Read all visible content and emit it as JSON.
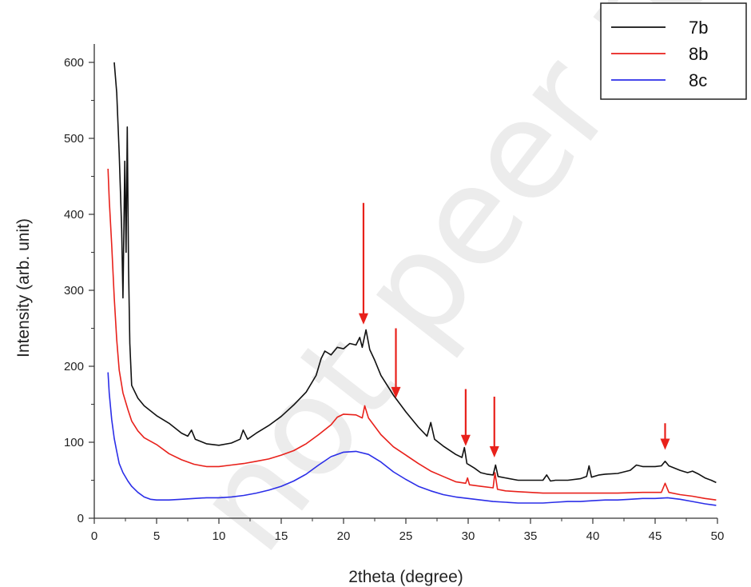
{
  "watermark": "not peer re",
  "chart_data": {
    "type": "line",
    "xlabel": "2theta (degree)",
    "ylabel": "Intensity (arb. unit)",
    "xlim": [
      0,
      50
    ],
    "ylim": [
      0,
      620
    ],
    "xticks": [
      0,
      5,
      10,
      15,
      20,
      25,
      30,
      35,
      40,
      45,
      50
    ],
    "yticks": [
      0,
      100,
      200,
      300,
      400,
      500,
      600
    ],
    "legend_position": "top-right",
    "grid": false,
    "series": [
      {
        "name": "7b",
        "color": "#111111",
        "points": [
          [
            1.6,
            600
          ],
          [
            1.8,
            560
          ],
          [
            2.0,
            480
          ],
          [
            2.2,
            380
          ],
          [
            2.3,
            290
          ],
          [
            2.45,
            470
          ],
          [
            2.55,
            350
          ],
          [
            2.65,
            515
          ],
          [
            2.75,
            330
          ],
          [
            2.85,
            230
          ],
          [
            3.0,
            175
          ],
          [
            3.5,
            158
          ],
          [
            4.0,
            148
          ],
          [
            5.0,
            135
          ],
          [
            6.0,
            125
          ],
          [
            7.0,
            112
          ],
          [
            7.5,
            108
          ],
          [
            7.8,
            116
          ],
          [
            8.1,
            104
          ],
          [
            9.0,
            98
          ],
          [
            10.0,
            96
          ],
          [
            11.0,
            99
          ],
          [
            11.7,
            104
          ],
          [
            11.95,
            116
          ],
          [
            12.3,
            104
          ],
          [
            13.0,
            112
          ],
          [
            14.0,
            122
          ],
          [
            15.0,
            134
          ],
          [
            16.0,
            149
          ],
          [
            17.0,
            166
          ],
          [
            17.8,
            188
          ],
          [
            18.2,
            210
          ],
          [
            18.5,
            220
          ],
          [
            19.0,
            215
          ],
          [
            19.5,
            225
          ],
          [
            20.0,
            223
          ],
          [
            20.5,
            230
          ],
          [
            21.0,
            228
          ],
          [
            21.3,
            238
          ],
          [
            21.5,
            225
          ],
          [
            21.8,
            248
          ],
          [
            22.1,
            222
          ],
          [
            22.5,
            208
          ],
          [
            23.0,
            188
          ],
          [
            24.0,
            162
          ],
          [
            25.0,
            140
          ],
          [
            26.0,
            120
          ],
          [
            26.7,
            108
          ],
          [
            27.0,
            126
          ],
          [
            27.3,
            104
          ],
          [
            28.0,
            95
          ],
          [
            29.0,
            84
          ],
          [
            29.5,
            80
          ],
          [
            29.7,
            93
          ],
          [
            29.9,
            72
          ],
          [
            30.5,
            66
          ],
          [
            31.0,
            60
          ],
          [
            31.5,
            58
          ],
          [
            32.0,
            57
          ],
          [
            32.2,
            70
          ],
          [
            32.4,
            55
          ],
          [
            33.0,
            53
          ],
          [
            34.0,
            50
          ],
          [
            35.0,
            50
          ],
          [
            36.0,
            50
          ],
          [
            36.3,
            57
          ],
          [
            36.6,
            49
          ],
          [
            37.0,
            50
          ],
          [
            38.0,
            50
          ],
          [
            39.0,
            52
          ],
          [
            39.5,
            55
          ],
          [
            39.7,
            69
          ],
          [
            39.9,
            54
          ],
          [
            40.5,
            57
          ],
          [
            41.0,
            58
          ],
          [
            42.0,
            59
          ],
          [
            43.0,
            63
          ],
          [
            43.5,
            70
          ],
          [
            44.0,
            68
          ],
          [
            45.0,
            68
          ],
          [
            45.5,
            69
          ],
          [
            45.8,
            75
          ],
          [
            46.1,
            69
          ],
          [
            47.0,
            63
          ],
          [
            47.6,
            60
          ],
          [
            48.0,
            62
          ],
          [
            48.5,
            58
          ],
          [
            49.0,
            53
          ],
          [
            49.5,
            50
          ],
          [
            49.9,
            47
          ]
        ]
      },
      {
        "name": "8b",
        "color": "#e8211b",
        "points": [
          [
            1.1,
            460
          ],
          [
            1.2,
            420
          ],
          [
            1.4,
            360
          ],
          [
            1.6,
            290
          ],
          [
            1.8,
            235
          ],
          [
            2.0,
            195
          ],
          [
            2.3,
            165
          ],
          [
            2.7,
            143
          ],
          [
            3.0,
            128
          ],
          [
            3.5,
            115
          ],
          [
            4.0,
            106
          ],
          [
            5.0,
            97
          ],
          [
            6.0,
            85
          ],
          [
            7.0,
            77
          ],
          [
            8.0,
            71
          ],
          [
            9.0,
            68
          ],
          [
            10.0,
            68
          ],
          [
            11.0,
            70
          ],
          [
            12.0,
            72
          ],
          [
            13.0,
            75
          ],
          [
            14.0,
            78
          ],
          [
            15.0,
            83
          ],
          [
            16.0,
            89
          ],
          [
            17.0,
            98
          ],
          [
            18.0,
            110
          ],
          [
            19.0,
            123
          ],
          [
            19.5,
            133
          ],
          [
            20.0,
            137
          ],
          [
            21.0,
            136
          ],
          [
            21.5,
            132
          ],
          [
            21.7,
            148
          ],
          [
            22.0,
            132
          ],
          [
            23.0,
            110
          ],
          [
            24.0,
            94
          ],
          [
            25.0,
            83
          ],
          [
            26.0,
            72
          ],
          [
            27.0,
            62
          ],
          [
            28.0,
            55
          ],
          [
            29.0,
            48
          ],
          [
            29.8,
            46
          ],
          [
            29.95,
            53
          ],
          [
            30.1,
            44
          ],
          [
            31.0,
            42
          ],
          [
            32.0,
            40
          ],
          [
            32.15,
            60
          ],
          [
            32.35,
            38
          ],
          [
            33.0,
            36
          ],
          [
            34.0,
            35
          ],
          [
            35.0,
            34
          ],
          [
            36.0,
            33
          ],
          [
            38.0,
            33
          ],
          [
            40.0,
            33
          ],
          [
            42.0,
            33
          ],
          [
            44.0,
            34
          ],
          [
            45.5,
            34
          ],
          [
            45.8,
            46
          ],
          [
            46.1,
            34
          ],
          [
            47.0,
            31
          ],
          [
            48.0,
            29
          ],
          [
            49.0,
            26
          ],
          [
            49.9,
            24
          ]
        ]
      },
      {
        "name": "8c",
        "color": "#2b2ee8",
        "points": [
          [
            1.1,
            192
          ],
          [
            1.2,
            165
          ],
          [
            1.4,
            130
          ],
          [
            1.6,
            105
          ],
          [
            1.8,
            88
          ],
          [
            2.0,
            72
          ],
          [
            2.3,
            60
          ],
          [
            2.7,
            49
          ],
          [
            3.0,
            42
          ],
          [
            3.5,
            34
          ],
          [
            4.0,
            28
          ],
          [
            4.5,
            25
          ],
          [
            5.0,
            24
          ],
          [
            6.0,
            24
          ],
          [
            7.0,
            25
          ],
          [
            8.0,
            26
          ],
          [
            9.0,
            27
          ],
          [
            10.0,
            27
          ],
          [
            11.0,
            28
          ],
          [
            12.0,
            30
          ],
          [
            13.0,
            33
          ],
          [
            14.0,
            37
          ],
          [
            15.0,
            42
          ],
          [
            16.0,
            49
          ],
          [
            17.0,
            58
          ],
          [
            18.0,
            70
          ],
          [
            19.0,
            81
          ],
          [
            20.0,
            87
          ],
          [
            21.0,
            88
          ],
          [
            22.0,
            84
          ],
          [
            23.0,
            74
          ],
          [
            24.0,
            61
          ],
          [
            25.0,
            51
          ],
          [
            26.0,
            42
          ],
          [
            27.0,
            36
          ],
          [
            28.0,
            31
          ],
          [
            29.0,
            28
          ],
          [
            30.0,
            26
          ],
          [
            31.0,
            24
          ],
          [
            32.0,
            22
          ],
          [
            33.0,
            21
          ],
          [
            34.0,
            20
          ],
          [
            35.0,
            20
          ],
          [
            36.0,
            20
          ],
          [
            37.0,
            21
          ],
          [
            38.0,
            22
          ],
          [
            39.0,
            22
          ],
          [
            40.0,
            23
          ],
          [
            41.0,
            24
          ],
          [
            42.0,
            24
          ],
          [
            43.0,
            25
          ],
          [
            44.0,
            26
          ],
          [
            45.0,
            26
          ],
          [
            46.0,
            27
          ],
          [
            47.0,
            25
          ],
          [
            48.0,
            22
          ],
          [
            49.0,
            19
          ],
          [
            49.9,
            17
          ]
        ]
      }
    ],
    "arrows": [
      {
        "x": 21.6,
        "y_from": 415,
        "y_to": 255
      },
      {
        "x": 24.2,
        "y_from": 250,
        "y_to": 158
      },
      {
        "x": 29.8,
        "y_from": 170,
        "y_to": 95
      },
      {
        "x": 32.1,
        "y_from": 160,
        "y_to": 80
      },
      {
        "x": 45.8,
        "y_from": 125,
        "y_to": 90
      }
    ],
    "arrow_color": "#e8211b"
  }
}
